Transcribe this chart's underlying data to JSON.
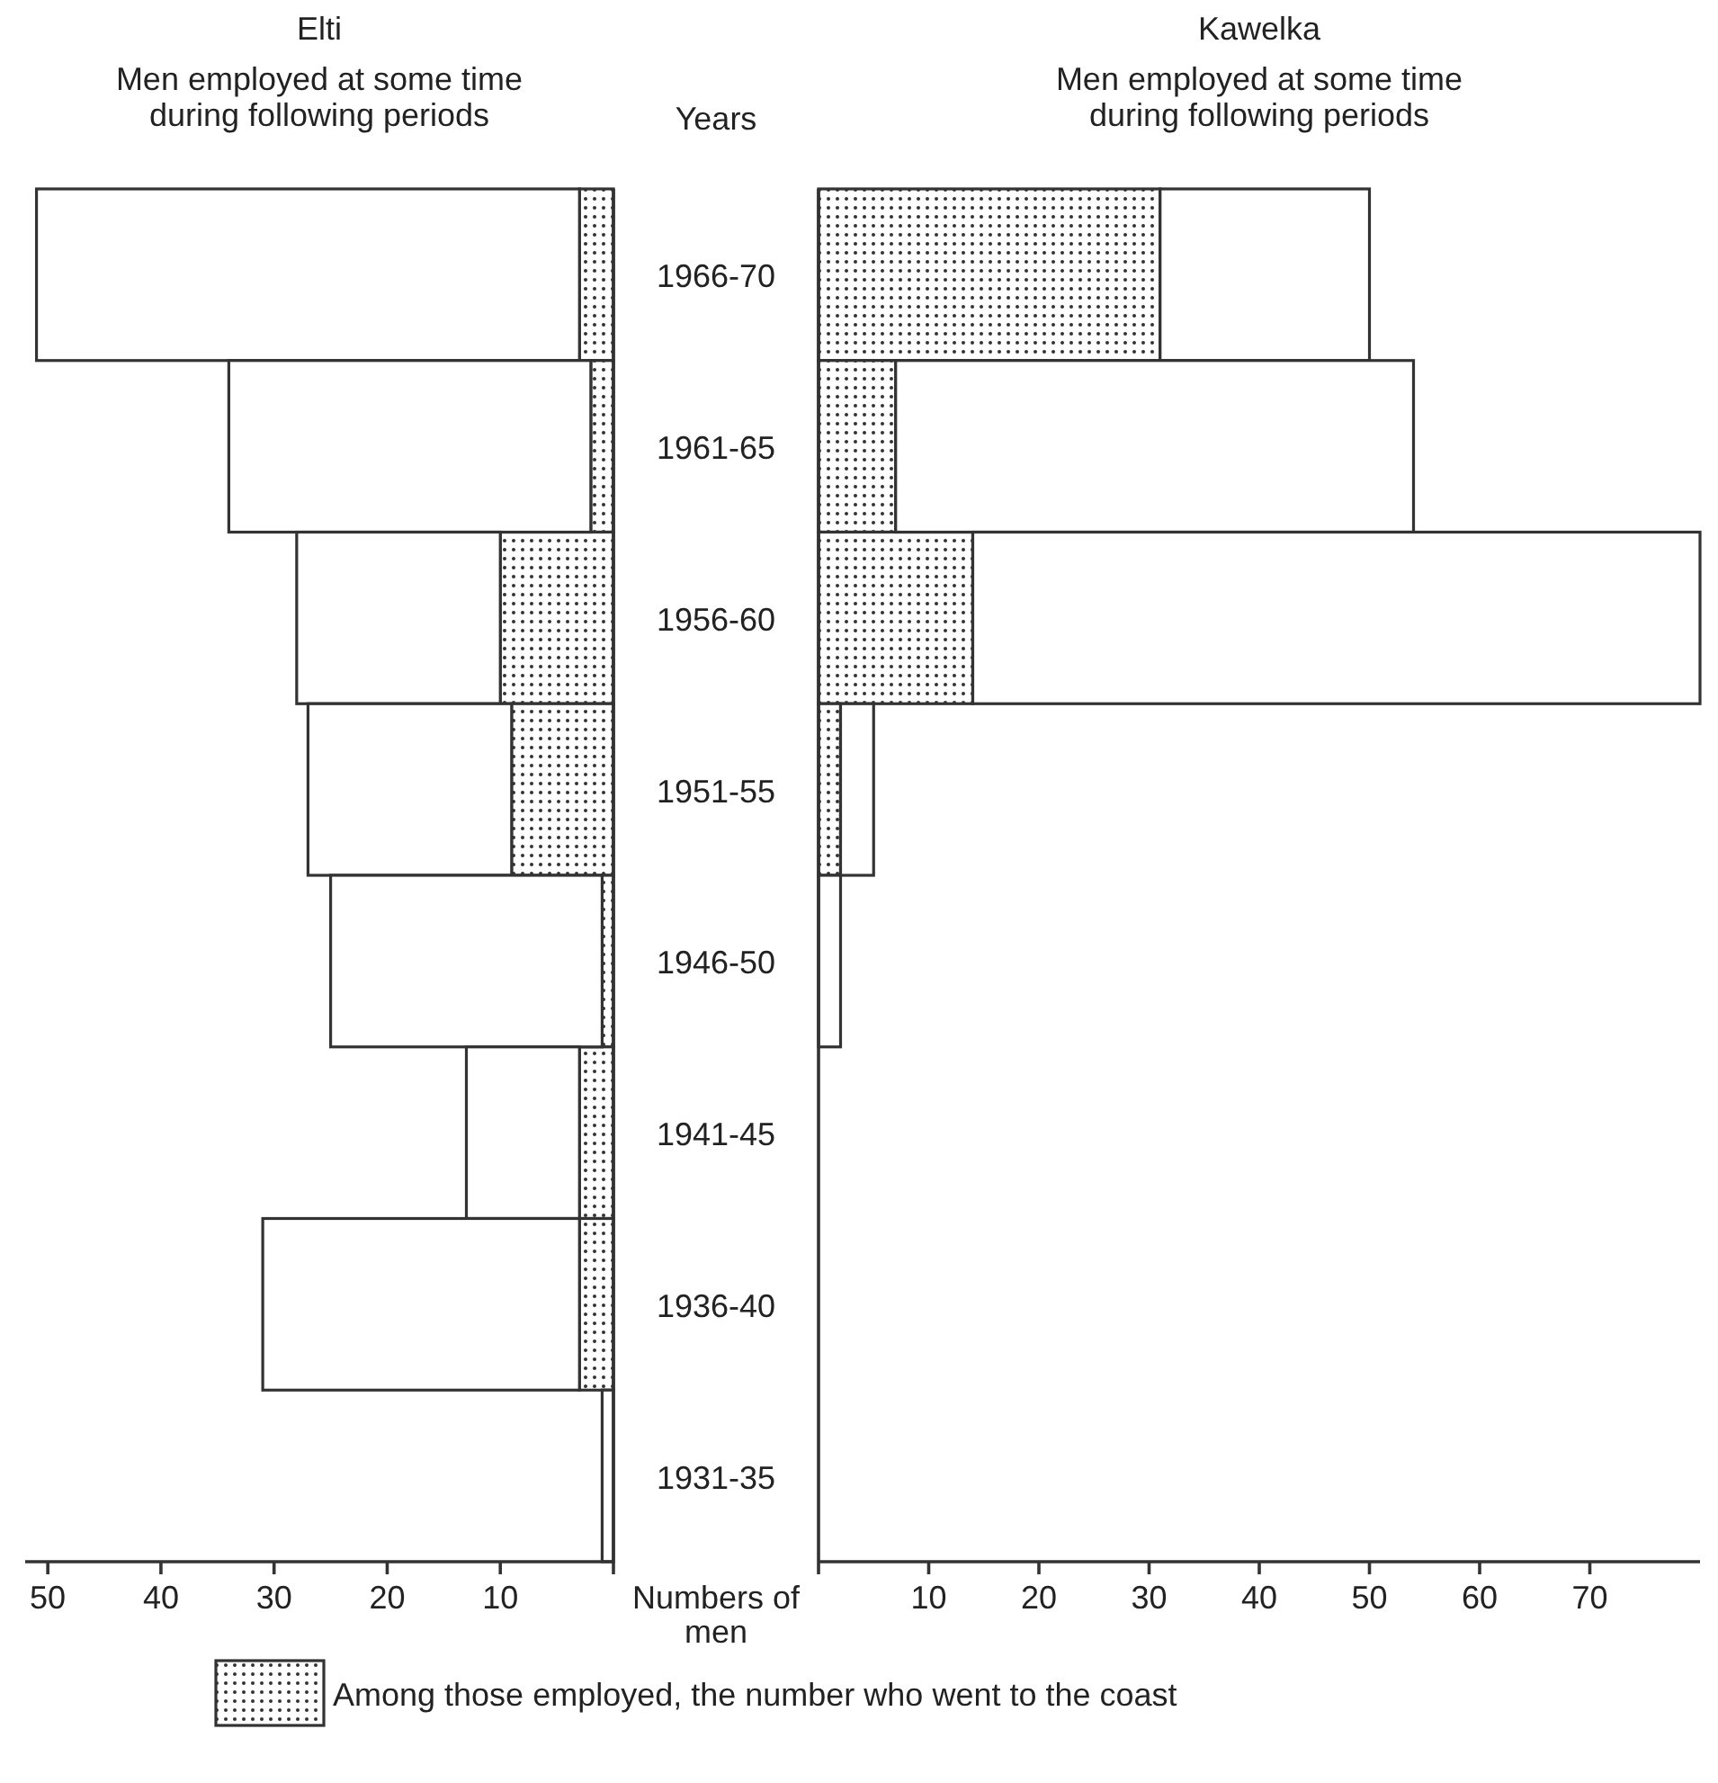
{
  "chart_data": [
    {
      "type": "bar",
      "orientation": "horizontal",
      "stacked": true,
      "title": "Elti",
      "subtitle": "Men employed at some time during following periods",
      "ylabel": "Years",
      "xlabel": "Numbers of men",
      "categories": [
        "1966-70",
        "1961-65",
        "1956-60",
        "1951-55",
        "1946-50",
        "1941-45",
        "1936-40",
        "1931-35"
      ],
      "series": [
        {
          "name": "Among those employed, the number who went to the coast",
          "color": "#333333",
          "values": [
            3,
            2,
            10,
            9,
            1,
            3,
            3,
            0
          ]
        },
        {
          "color": "#ffffff",
          "values": [
            48,
            32,
            18,
            18,
            24,
            10,
            28,
            1
          ]
        }
      ],
      "xlim": [
        52,
        0
      ],
      "xticks": [
        50,
        40,
        30,
        20,
        10,
        {
          "value": 0,
          "label": null
        }
      ],
      "legend": "bottom",
      "tick_labels": "xy"
    },
    {
      "type": "bar",
      "orientation": "horizontal",
      "stacked": true,
      "title": "Kawelka",
      "subtitle": "Men employed at some time during following periods",
      "categories": [
        "1966-70",
        "1961-65",
        "1956-60",
        "1951-55",
        "1946-50",
        "1941-45",
        "1936-40",
        "1931-35"
      ],
      "series": [
        {
          "color": "#333333",
          "values": [
            31,
            7,
            14,
            2,
            0,
            0,
            0,
            0
          ]
        },
        {
          "color": "#ffffff",
          "values": [
            19,
            47,
            66,
            3,
            2,
            0,
            0,
            0
          ]
        }
      ],
      "xlim": [
        0,
        80
      ],
      "xticks": [
        {
          "value": 0,
          "label": null
        },
        10,
        20,
        30,
        40,
        50,
        60,
        70
      ],
      "tick_labels": "x"
    }
  ]
}
